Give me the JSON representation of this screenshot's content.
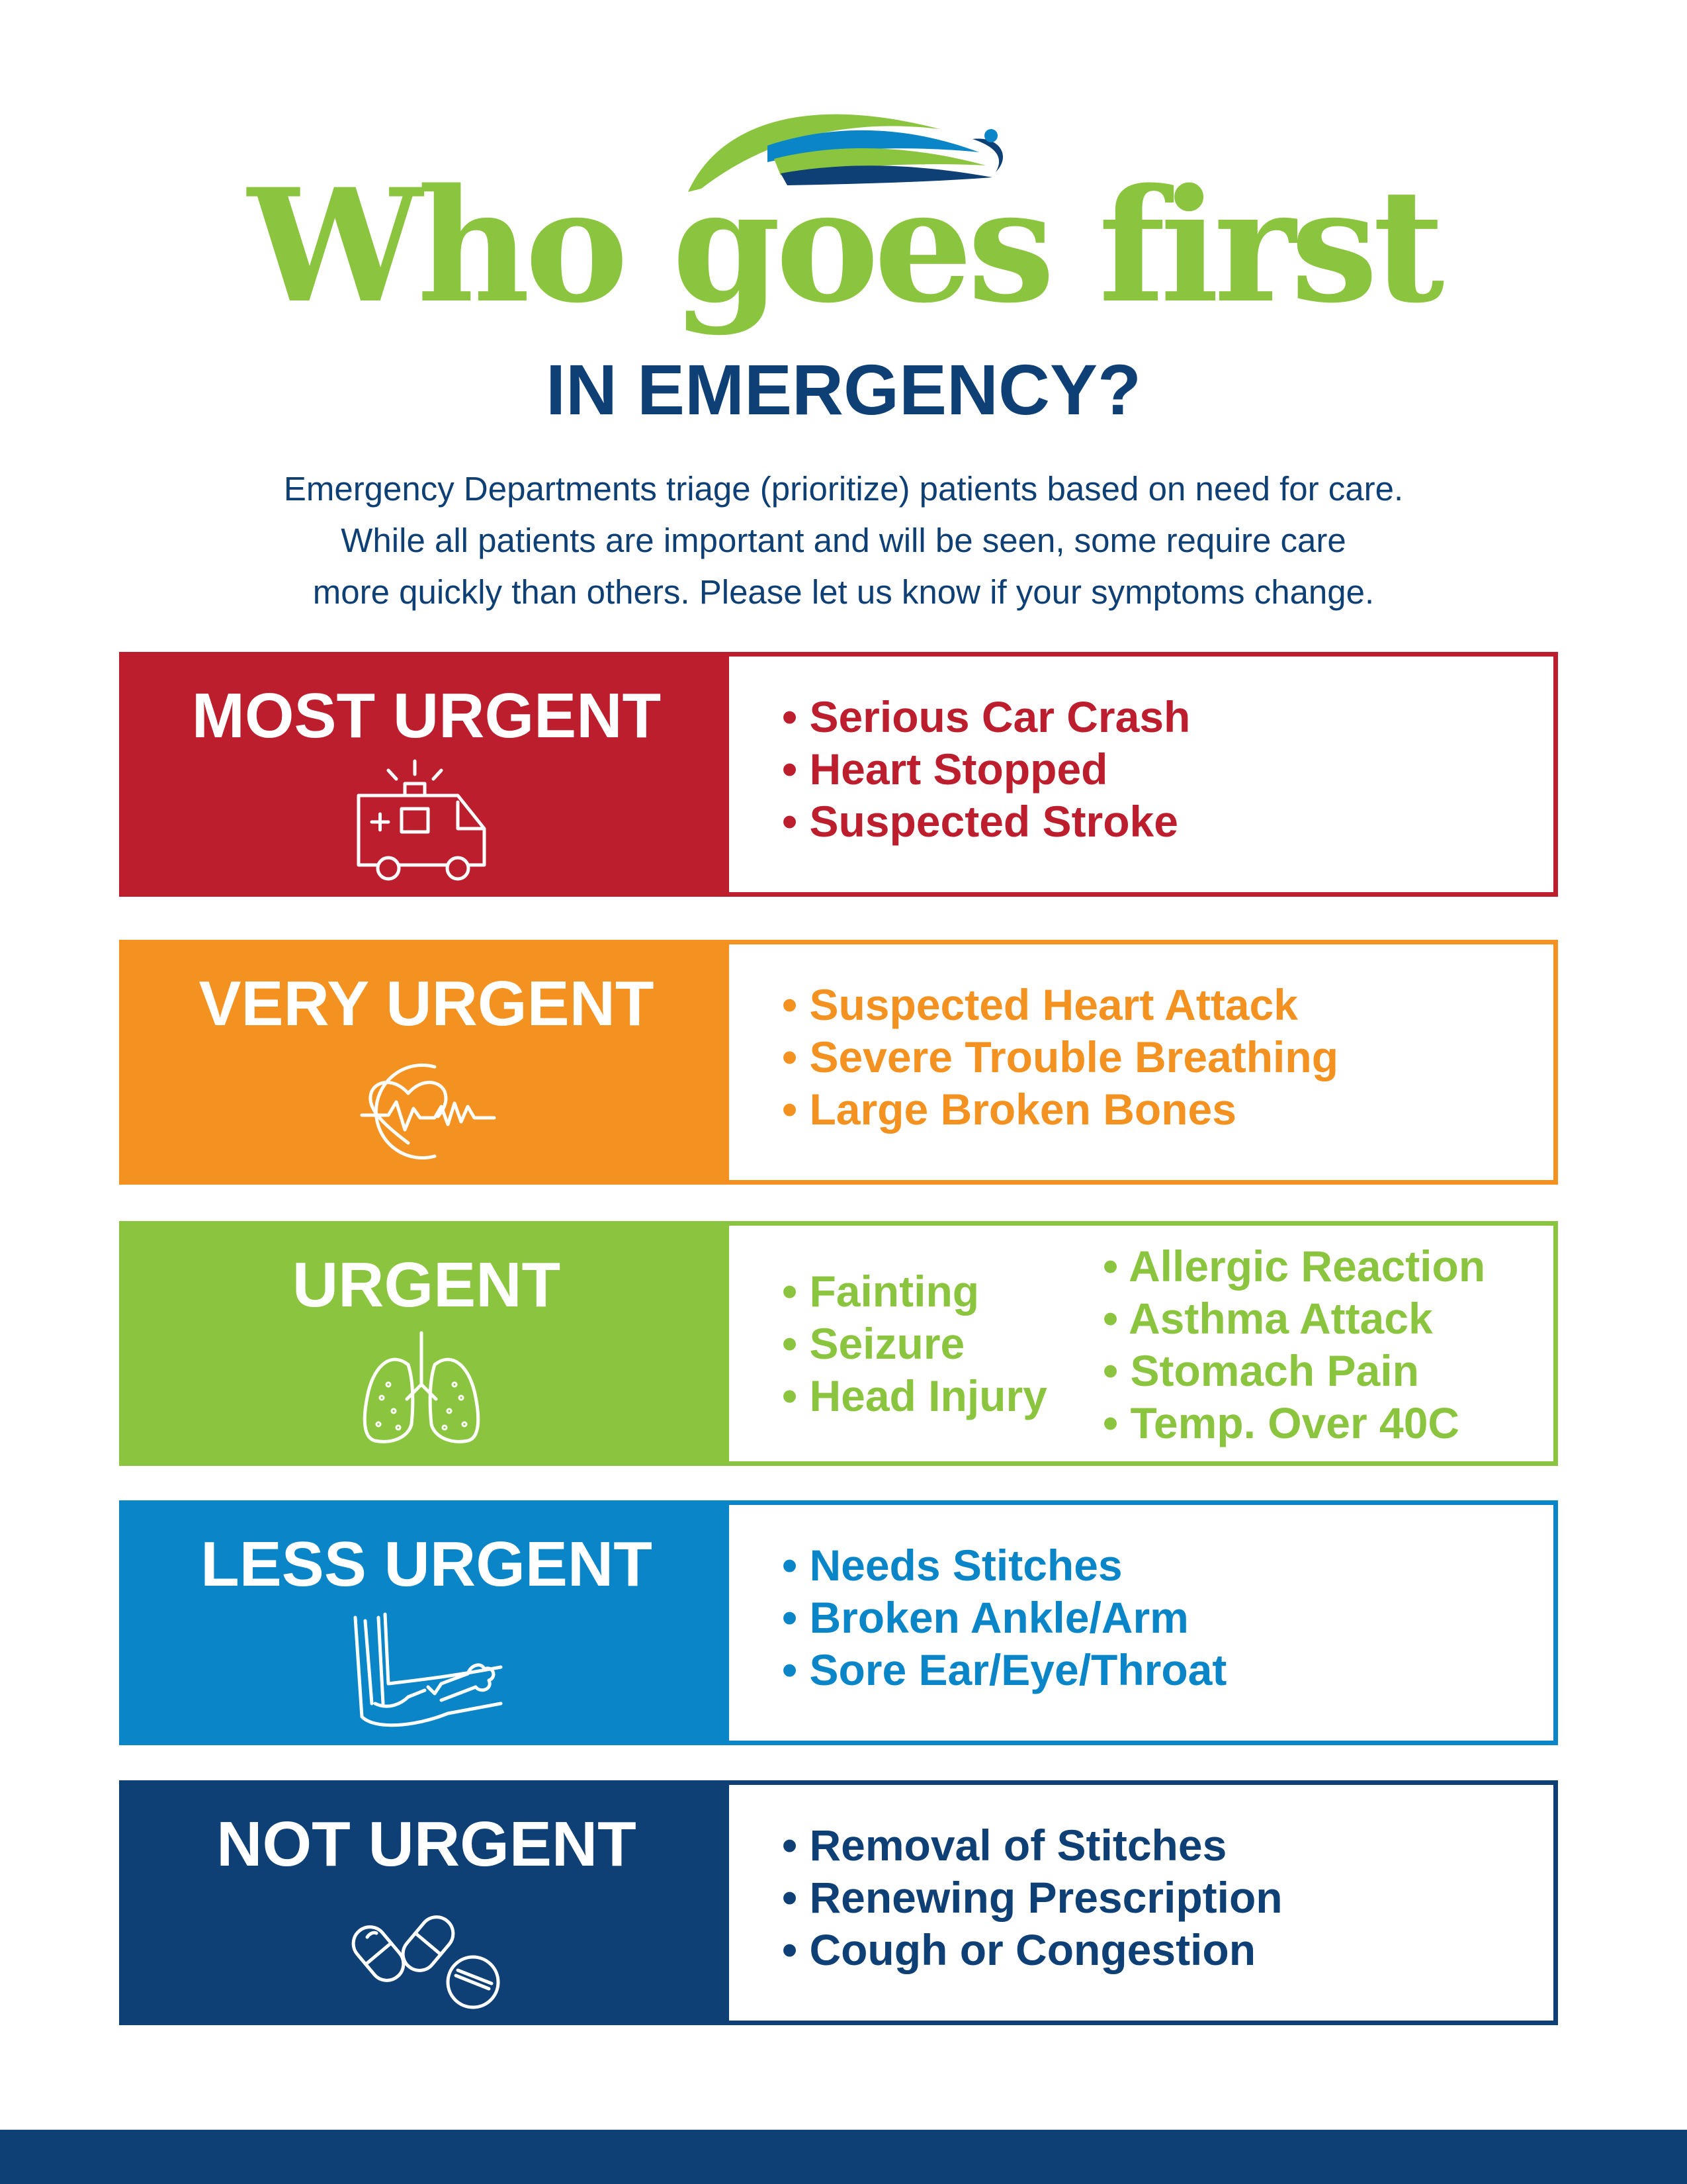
{
  "colors": {
    "title_green": "#8bc53f",
    "navy": "#0e3f75",
    "most_urgent": "#bd1e2d",
    "very_urgent": "#f39220",
    "urgent": "#8bc53f",
    "less_urgent": "#0a86c8",
    "not_urgent": "#0e3f75"
  },
  "header": {
    "title": "Who goes first",
    "subtitle": "IN EMERGENCY?",
    "intro": [
      "Emergency Departments triage (prioritize) patients based on need for care.",
      "While all patients are important and will be seen, some require care",
      "more quickly than others. Please let us know if your symptoms change."
    ]
  },
  "levels": [
    {
      "label": "MOST URGENT",
      "icon": "ambulance-icon",
      "items": [
        "Serious Car Crash",
        "Heart Stopped",
        "Suspected Stroke"
      ]
    },
    {
      "label": "VERY URGENT",
      "icon": "heartbeat-icon",
      "items": [
        "Suspected Heart Attack",
        "Severe Trouble Breathing",
        "Large Broken Bones"
      ]
    },
    {
      "label": "URGENT",
      "icon": "lungs-icon",
      "items_col1": [
        "Fainting",
        "Seizure",
        "Head Injury"
      ],
      "items_col2": [
        "Allergic Reaction",
        "Asthma Attack",
        "Stomach Pain",
        "Temp. Over 40C"
      ]
    },
    {
      "label": "LESS URGENT",
      "icon": "broken-arm-icon",
      "items": [
        "Needs Stitches",
        "Broken Ankle/Arm",
        "Sore Ear/Eye/Throat"
      ]
    },
    {
      "label": "NOT URGENT",
      "icon": "pills-icon",
      "items": [
        "Removal of Stitches",
        "Renewing Prescription",
        "Cough or Congestion"
      ]
    }
  ]
}
